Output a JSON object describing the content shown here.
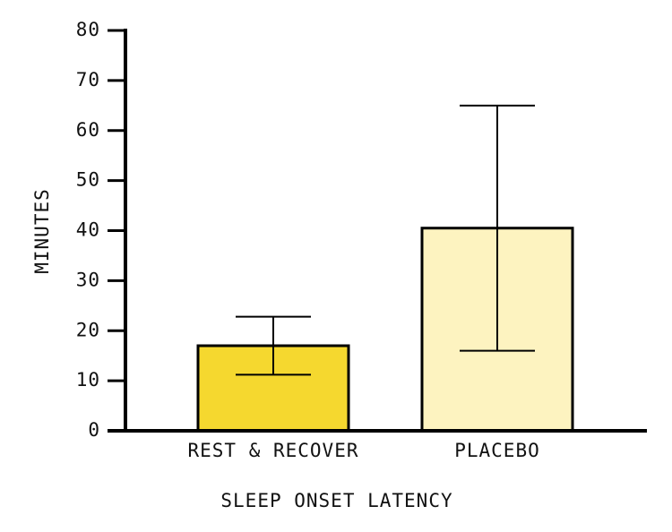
{
  "chart_data": {
    "type": "bar",
    "x_label": "SLEEP ONSET LATENCY",
    "y_label": "MINUTES",
    "categories": [
      "REST & RECOVER",
      "PLACEBO"
    ],
    "values": [
      17,
      40.5
    ],
    "errors": [
      5.8,
      24.5
    ],
    "colors": [
      "#f5d82f",
      "#fdf3c0"
    ],
    "ylim": [
      0,
      80
    ],
    "yticks": [
      0,
      10,
      20,
      30,
      40,
      50,
      60,
      70,
      80
    ]
  }
}
